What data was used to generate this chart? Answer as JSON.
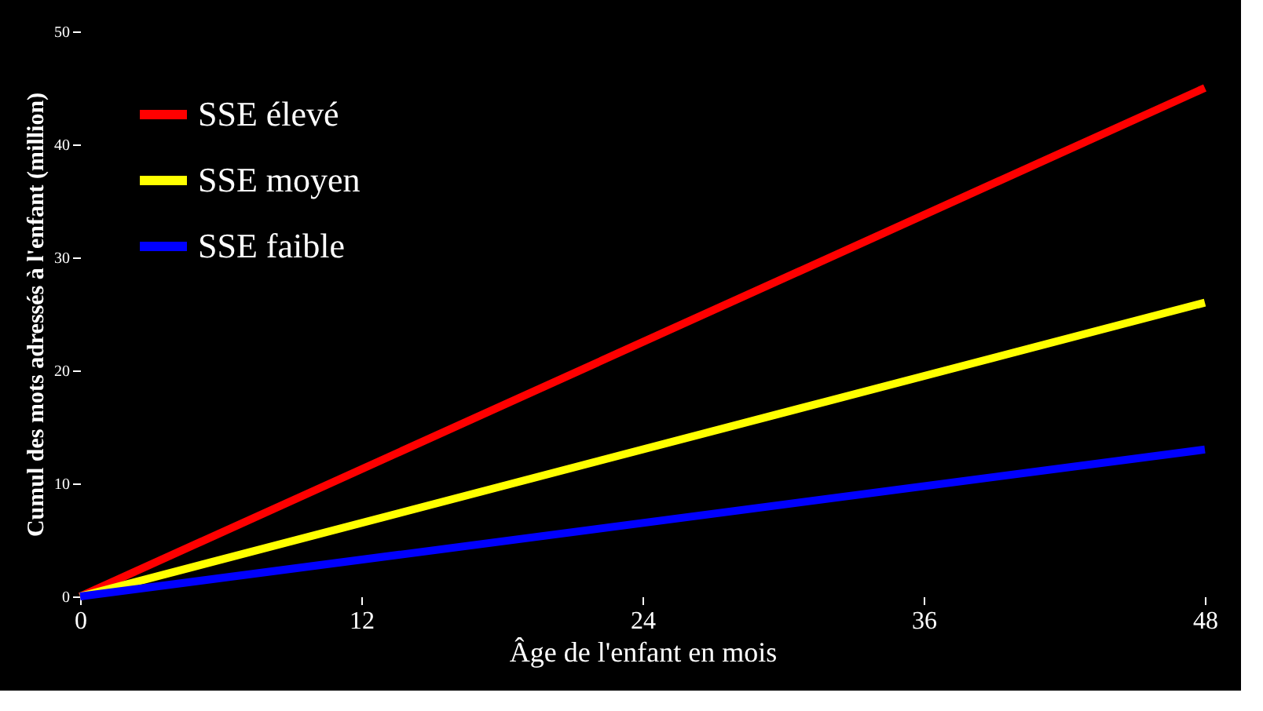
{
  "chart_data": {
    "type": "line",
    "xlabel": "Âge de l'enfant en mois",
    "ylabel": "Cumul des mots adressés à l'enfant (million)",
    "x": [
      0,
      48
    ],
    "series": [
      {
        "name": "SSE élevé",
        "color": "#ff0000",
        "values": [
          0,
          45
        ]
      },
      {
        "name": "SSE moyen",
        "color": "#ffff00",
        "values": [
          0,
          26
        ]
      },
      {
        "name": "SSE faible",
        "color": "#0000ff",
        "values": [
          0,
          13
        ]
      }
    ],
    "xlim": [
      0,
      48
    ],
    "xticks": [
      0,
      12,
      24,
      36,
      48
    ],
    "ylim": [
      0,
      50
    ],
    "yticks": [
      0,
      10,
      20,
      30,
      40,
      50
    ],
    "grid": false,
    "legend": "top left",
    "marker": "none",
    "line_style": "solid"
  }
}
